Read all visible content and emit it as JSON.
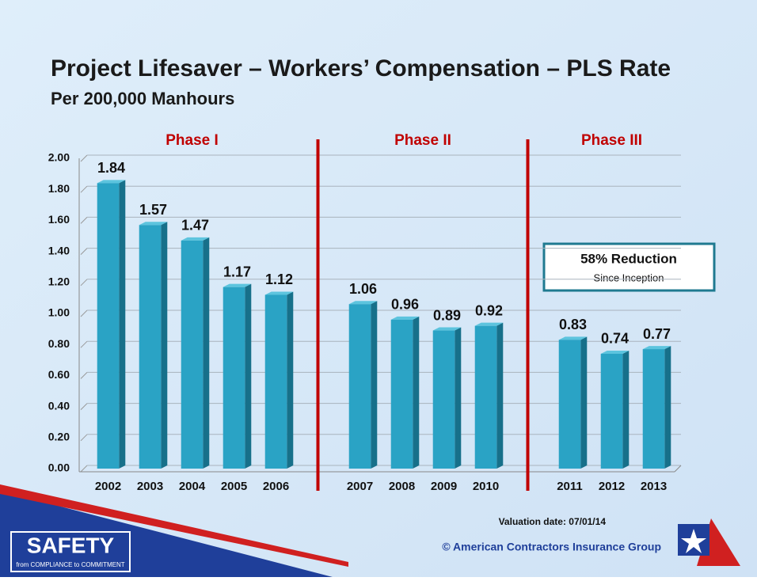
{
  "chart_data": {
    "type": "bar",
    "title": "Project Lifesaver – Workers’ Compensation – PLS Rate",
    "subtitle": "Per 200,000 Manhours",
    "categories": [
      "2002",
      "2003",
      "2004",
      "2005",
      "2006",
      null,
      "2007",
      "2008",
      "2009",
      "2010",
      null,
      "2011",
      "2012",
      "2013"
    ],
    "values": [
      1.84,
      1.57,
      1.47,
      1.17,
      1.12,
      null,
      1.06,
      0.96,
      0.89,
      0.92,
      null,
      0.83,
      0.74,
      0.77
    ],
    "color": "#2aa3c5",
    "ylim": [
      0,
      2
    ],
    "yticks": [
      {
        "value": 0,
        "label": "0.00"
      },
      {
        "value": 0.2,
        "label": "0.20"
      },
      {
        "value": 0.4,
        "label": "0.40"
      },
      {
        "value": 0.6,
        "label": "0.60"
      },
      {
        "value": 0.8,
        "label": "0.80"
      },
      {
        "value": 1,
        "label": "1.00"
      },
      {
        "value": 1.2,
        "label": "1.20"
      },
      {
        "value": 1.4,
        "label": "1.40"
      },
      {
        "value": 1.6,
        "label": "1.60"
      },
      {
        "value": 1.8,
        "label": "1.80"
      },
      {
        "value": 2,
        "label": "2.00"
      }
    ],
    "grid": true,
    "phases": [
      "Phase I",
      "Phase II",
      "Phase III"
    ],
    "annotation": {
      "title": "58% Reduction",
      "text": "Since Inception"
    },
    "valuation": "Valuation date:  07/01/14",
    "copyright": "© American Contractors Insurance Group",
    "logo": {
      "title": "SAFETY",
      "tagline": "from COMPLIANCE  to COMMITMENT"
    }
  }
}
